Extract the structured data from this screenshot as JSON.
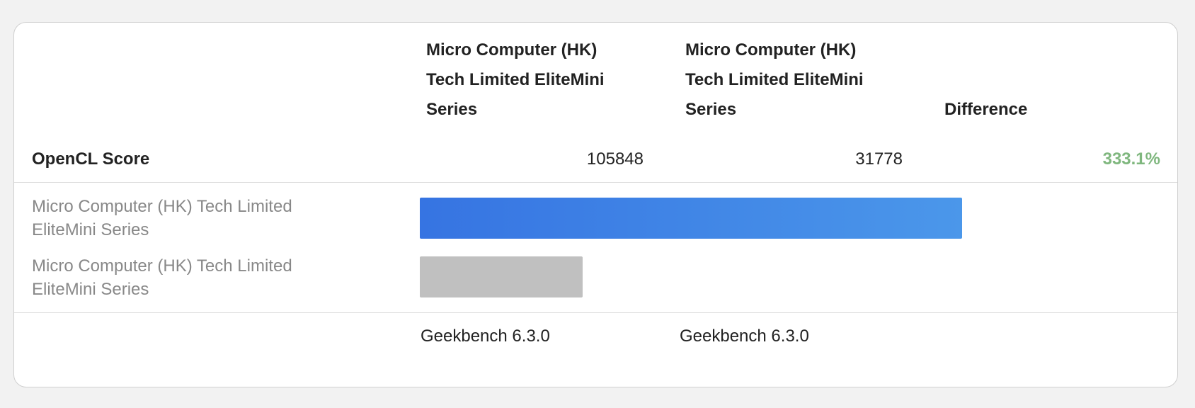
{
  "header": {
    "columns": [
      "Micro Computer (HK) Tech Limited EliteMini Series",
      "Micro Computer (HK) Tech Limited EliteMini Series",
      "Difference"
    ]
  },
  "score": {
    "label": "OpenCL Score",
    "values": [
      105848,
      31778
    ],
    "difference": "333.1%",
    "difference_color": "#7fb77e"
  },
  "bars": [
    {
      "label": "Micro Computer (HK) Tech Limited EliteMini Series",
      "colors": [
        "#3674e2",
        "#4b97ea"
      ]
    },
    {
      "label": "Micro Computer (HK) Tech Limited EliteMini Series",
      "colors": [
        "#c0c0c0",
        "#c0c0c0"
      ]
    }
  ],
  "footer": [
    "Geekbench 6.3.0",
    "Geekbench 6.3.0"
  ]
}
